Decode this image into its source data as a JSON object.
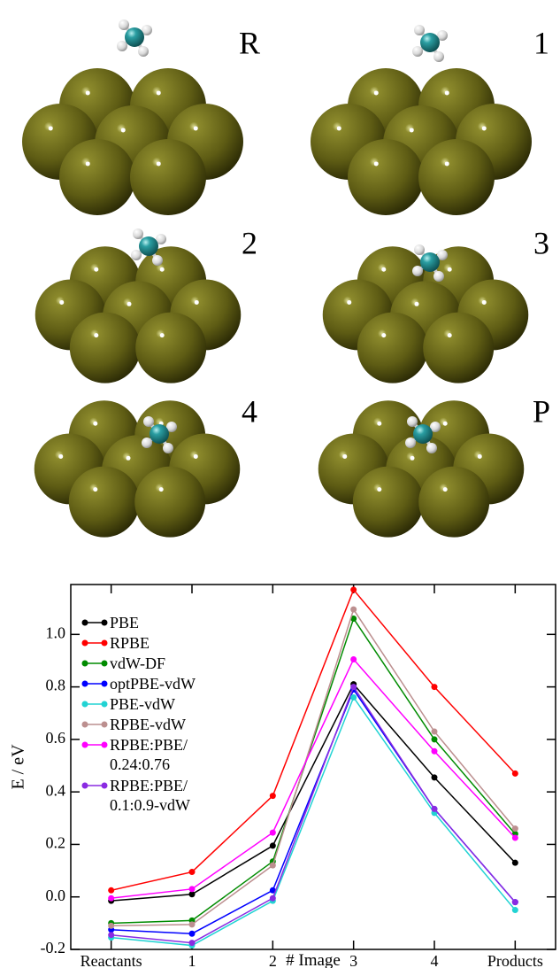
{
  "panels": [
    "R",
    "1",
    "2",
    "3",
    "4",
    "P"
  ],
  "chart_data": {
    "type": "line",
    "x_label": "# Image",
    "y_label": "E / eV",
    "categories": [
      "Reactants",
      "1",
      "2",
      "3",
      "4",
      "Products"
    ],
    "ylim": [
      -0.2,
      1.19
    ],
    "yticks": [
      -0.2,
      {
        "value": 0,
        "label": "0.0"
      },
      0.2,
      0.4,
      0.6,
      0.8,
      {
        "value": 1,
        "label": "1.0"
      }
    ],
    "legend": "upper left",
    "series": [
      {
        "name": "PBE",
        "color": "#000000",
        "values": [
          -0.015,
          0.01,
          0.195,
          0.81,
          0.455,
          0.13
        ]
      },
      {
        "name": "RPBE",
        "color": "#ff0000",
        "values": [
          0.025,
          0.095,
          0.385,
          1.17,
          0.8,
          0.47
        ]
      },
      {
        "name": "vdW-DF",
        "color": "#008b00",
        "values": [
          -0.1,
          -0.09,
          0.135,
          1.06,
          0.6,
          0.24
        ]
      },
      {
        "name": "optPBE-vdW",
        "color": "#0000ff",
        "values": [
          -0.125,
          -0.14,
          0.025,
          0.79,
          0.335,
          -0.02
        ]
      },
      {
        "name": "PBE-vdW",
        "color": "#22d3d3",
        "values": [
          -0.155,
          -0.185,
          -0.015,
          0.76,
          0.32,
          -0.05
        ]
      },
      {
        "name": "RPBE-vdW",
        "color": "#bc8f8f",
        "values": [
          -0.11,
          -0.105,
          0.12,
          1.095,
          0.63,
          0.26
        ]
      },
      {
        "name": "RPBE:PBE/\n0.24:0.76",
        "color": "#ff00ff",
        "values": [
          -0.005,
          0.03,
          0.245,
          0.905,
          0.555,
          0.225
        ]
      },
      {
        "name": "RPBE:PBE/\n0.1:0.9-vdW",
        "color": "#8a2be2",
        "values": [
          -0.145,
          -0.175,
          -0.005,
          0.8,
          0.335,
          -0.02
        ]
      }
    ]
  }
}
